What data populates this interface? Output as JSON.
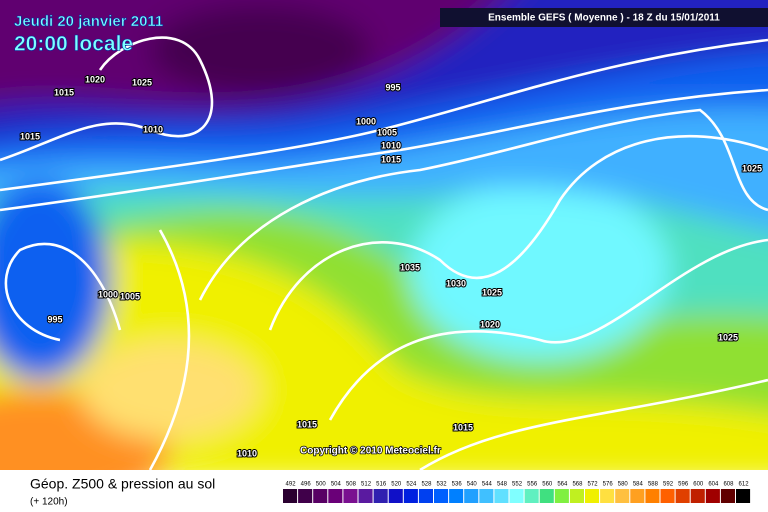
{
  "header": {
    "date": "Jeudi 20 janvier 2011",
    "time": "20:00 locale",
    "model": "Ensemble GEFS ( Moyenne )  -  18 Z du 15/01/2011"
  },
  "isobar_labels": [
    "1020",
    "1025",
    "1015",
    "1015",
    "1010",
    "995",
    "1000",
    "1005",
    "1010",
    "1015",
    "1025",
    "1035",
    "1030",
    "1025",
    "1020",
    "1000",
    "1005",
    "995",
    "1025",
    "1015",
    "1015",
    "1010"
  ],
  "copyright": "Copyright © 2010 Meteociel.fr",
  "footer": {
    "title": "Géop. Z500 & pression au sol",
    "lead": "(+ 120h)"
  },
  "legend": {
    "levels": [
      492,
      496,
      500,
      504,
      508,
      512,
      516,
      520,
      524,
      528,
      532,
      536,
      540,
      544,
      548,
      552,
      556,
      560,
      564,
      568,
      572,
      576,
      580,
      584,
      588,
      592,
      596,
      600,
      604,
      608,
      612
    ],
    "colors": [
      "#2a0030",
      "#40004a",
      "#580064",
      "#6a0078",
      "#7a1090",
      "#5a1aa0",
      "#3020b0",
      "#1010c8",
      "#0020e0",
      "#0040f0",
      "#0060ff",
      "#0080ff",
      "#20a0ff",
      "#40c0ff",
      "#60e0ff",
      "#80ffff",
      "#60f0c0",
      "#40e080",
      "#80f040",
      "#c0f020",
      "#f0f000",
      "#ffe040",
      "#ffc040",
      "#ffa020",
      "#ff8000",
      "#ff6000",
      "#e04000",
      "#c02000",
      "#a00000",
      "#600000",
      "#000000"
    ]
  }
}
